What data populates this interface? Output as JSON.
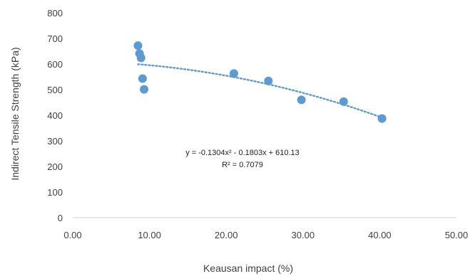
{
  "chart_data": {
    "type": "scatter",
    "title": "",
    "xlabel": "Keausan impact (%)",
    "ylabel": "Indirect Tensile Strength (kPa)",
    "xlim": [
      0,
      50
    ],
    "ylim": [
      0,
      800
    ],
    "x_ticks": [
      "0.00",
      "10.00",
      "20.00",
      "30.00",
      "40.00",
      "50.00"
    ],
    "y_ticks": [
      "0",
      "100",
      "200",
      "300",
      "400",
      "500",
      "600",
      "700",
      "800"
    ],
    "grid": false,
    "points": [
      {
        "x": 8.5,
        "y": 672
      },
      {
        "x": 8.7,
        "y": 641
      },
      {
        "x": 8.9,
        "y": 624
      },
      {
        "x": 9.1,
        "y": 543
      },
      {
        "x": 9.3,
        "y": 501
      },
      {
        "x": 21.0,
        "y": 563
      },
      {
        "x": 25.5,
        "y": 534
      },
      {
        "x": 29.8,
        "y": 460
      },
      {
        "x": 35.3,
        "y": 453
      },
      {
        "x": 40.3,
        "y": 387
      }
    ],
    "trendline": {
      "type": "polynomial",
      "coefficients": [
        -0.1304,
        -0.1803,
        610.13
      ],
      "x_range": [
        8.5,
        40.3
      ],
      "equation": "y = -0.1304x² - 0.1803x + 610.13",
      "r_squared": "R² = 0.7079"
    },
    "colors": {
      "marker": "#5b9bd5",
      "trendline": "#5b9bd5",
      "axis": "#d9d9d9",
      "text": "#404040"
    }
  }
}
